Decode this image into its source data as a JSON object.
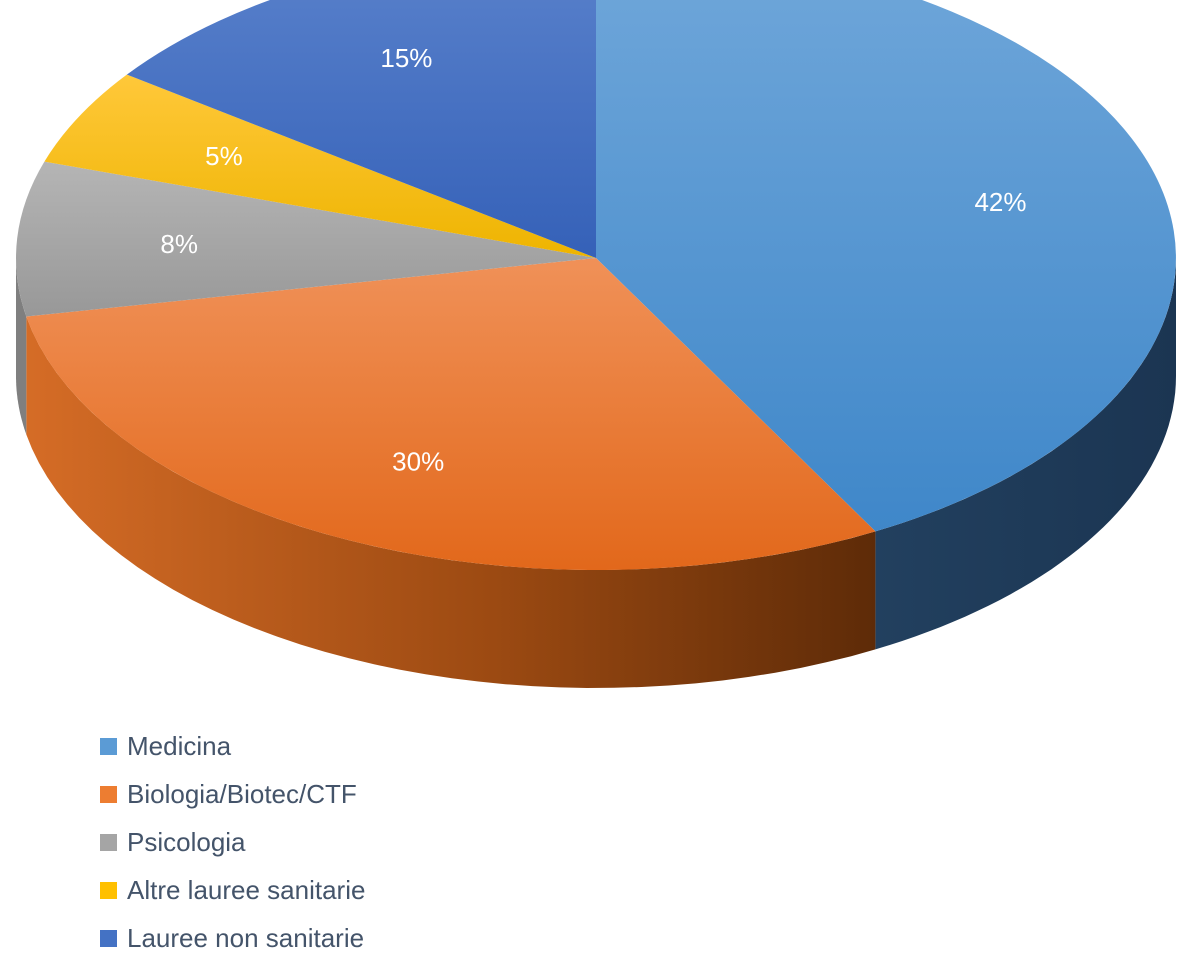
{
  "chart_data": {
    "type": "pie",
    "style": "3d",
    "title": "",
    "slices": [
      {
        "label": "Medicina",
        "value": 42,
        "color": "#5b9bd5"
      },
      {
        "label": "Biologia/Biotec/CTF",
        "value": 30,
        "color": "#ed7d31"
      },
      {
        "label": "Psicologia",
        "value": 8,
        "color": "#a5a5a5"
      },
      {
        "label": "Altre lauree sanitarie",
        "value": 5,
        "color": "#ffc000"
      },
      {
        "label": "Lauree non sanitarie",
        "value": 15,
        "color": "#4472c4"
      }
    ],
    "data_labels": [
      "42%",
      "30%",
      "8%",
      "5%",
      "15%"
    ],
    "legend_position": "bottom-left"
  },
  "legend": {
    "items": [
      {
        "label": "Medicina",
        "color": "#5b9bd5"
      },
      {
        "label": "Biologia/Biotec/CTF",
        "color": "#ed7d31"
      },
      {
        "label": "Psicologia",
        "color": "#a5a5a5"
      },
      {
        "label": "Altre lauree sanitarie",
        "color": "#ffc000"
      },
      {
        "label": "Lauree non sanitarie",
        "color": "#4472c4"
      }
    ]
  }
}
